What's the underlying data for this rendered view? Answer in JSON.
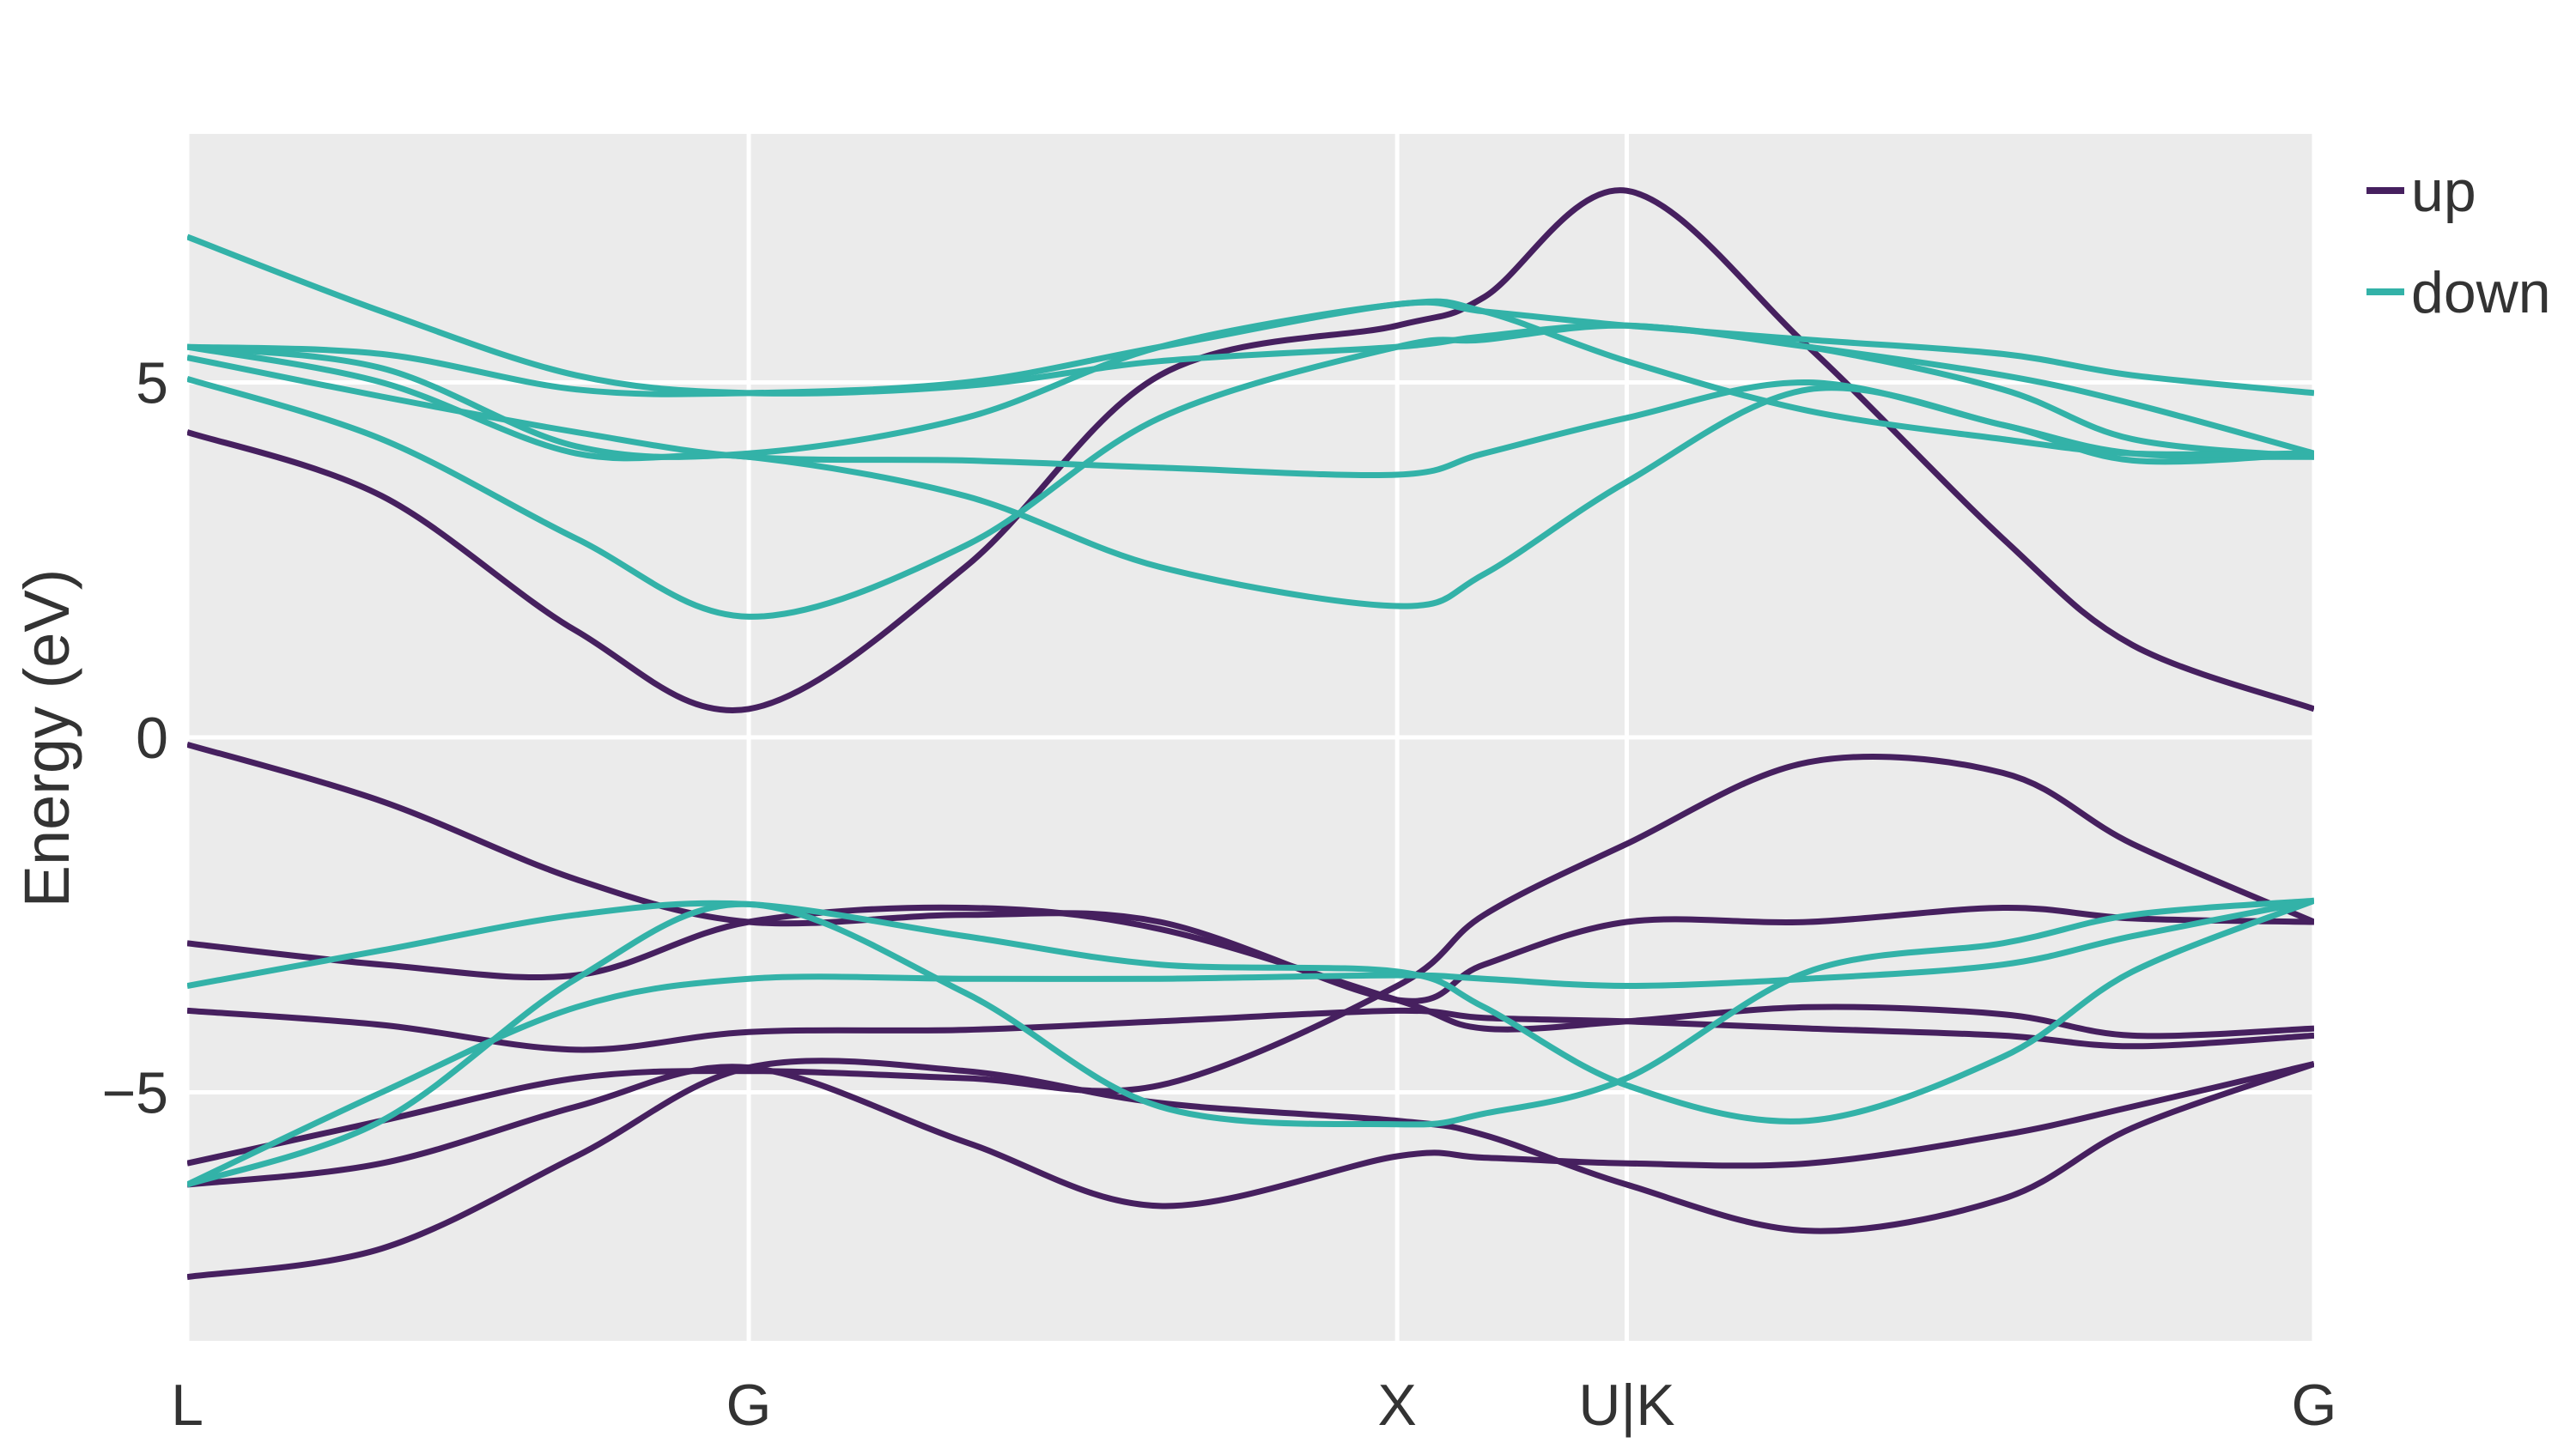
{
  "chart_data": {
    "type": "line",
    "title": "",
    "xlabel": "",
    "ylabel": "Energy (eV)",
    "ylim": [
      -8.5,
      8.5
    ],
    "grid": true,
    "legend_position": "outside-top-right",
    "x_ticks": [
      {
        "label": "L",
        "position": 0
      },
      {
        "label": "G",
        "position": 0.866
      },
      {
        "label": "X",
        "position": 1.866
      },
      {
        "label": "U|K",
        "position": 2.22
      },
      {
        "label": "G",
        "position": 3.28
      }
    ],
    "y_ticks": [
      {
        "label": "−5",
        "value": -5
      },
      {
        "label": "0",
        "value": 0
      },
      {
        "label": "5",
        "value": 5
      }
    ],
    "colors": {
      "up": "#46205f",
      "down": "#33b2a8",
      "panel": "#ebebeb",
      "grid": "#ffffff"
    },
    "series": [
      {
        "name": "up",
        "bands": [
          {
            "x": [
              0,
              0.3,
              0.6,
              0.866,
              1.2,
              1.5,
              1.866,
              2.0,
              2.22,
              2.5,
              2.8,
              3.0,
              3.28
            ],
            "y": [
              -7.6,
              -7.2,
              -5.9,
              -4.65,
              -4.7,
              -5.15,
              -5.4,
              -5.6,
              -6.3,
              -6.95,
              -6.5,
              -5.5,
              -4.6
            ]
          },
          {
            "x": [
              0,
              0.3,
              0.6,
              0.866,
              1.2,
              1.5,
              1.866,
              2.0,
              2.22,
              2.5,
              2.8,
              3.0,
              3.28
            ],
            "y": [
              -6.3,
              -6.0,
              -5.2,
              -4.65,
              -5.7,
              -6.6,
              -5.9,
              -5.92,
              -6.0,
              -6.0,
              -5.6,
              -5.2,
              -4.6
            ]
          },
          {
            "x": [
              0,
              0.3,
              0.6,
              0.866,
              1.2,
              1.5,
              1.866,
              2.0,
              2.22,
              2.5,
              2.8,
              3.0,
              3.28
            ],
            "y": [
              -3.85,
              -4.05,
              -4.4,
              -4.15,
              -4.12,
              -4.0,
              -3.85,
              -3.95,
              -4.0,
              -4.1,
              -4.2,
              -4.35,
              -4.2
            ]
          },
          {
            "x": [
              0,
              0.3,
              0.6,
              0.866,
              1.2,
              1.5,
              1.866,
              2.0,
              2.22,
              2.5,
              2.8,
              3.0,
              3.28
            ],
            "y": [
              -2.9,
              -3.2,
              -3.35,
              -2.6,
              -2.4,
              -2.7,
              -3.7,
              -4.1,
              -4.0,
              -3.8,
              -3.9,
              -4.2,
              -4.1
            ]
          },
          {
            "x": [
              0,
              0.3,
              0.6,
              0.866,
              1.2,
              1.5,
              1.866,
              2.0,
              2.22,
              2.5,
              2.8,
              3.0,
              3.28
            ],
            "y": [
              -0.1,
              -0.9,
              -2.0,
              -2.6,
              -2.5,
              -2.6,
              -3.7,
              -3.2,
              -2.6,
              -2.6,
              -2.4,
              -2.55,
              -2.6
            ]
          },
          {
            "x": [
              0,
              0.3,
              0.6,
              0.866,
              1.2,
              1.5,
              1.866,
              2.0,
              2.22,
              2.5,
              2.8,
              3.0,
              3.28
            ],
            "y": [
              -6.0,
              -5.4,
              -4.8,
              -4.7,
              -4.8,
              -4.9,
              -3.5,
              -2.5,
              -1.5,
              -0.35,
              -0.5,
              -1.5,
              -2.6
            ]
          },
          {
            "x": [
              0,
              0.3,
              0.6,
              0.866,
              1.2,
              1.5,
              1.866,
              2.0,
              2.22,
              2.5,
              2.8,
              3.0,
              3.28
            ],
            "y": [
              4.3,
              3.4,
              1.5,
              0.4,
              2.4,
              5.1,
              5.8,
              6.2,
              7.7,
              5.5,
              2.8,
              1.3,
              0.4
            ]
          }
        ]
      },
      {
        "name": "down",
        "bands": [
          {
            "x": [
              0,
              0.3,
              0.6,
              0.866,
              1.2,
              1.5,
              1.866,
              2.0,
              2.22,
              2.5,
              2.8,
              3.0,
              3.28
            ],
            "y": [
              -6.3,
              -5.4,
              -3.4,
              -2.35,
              -3.6,
              -5.2,
              -5.45,
              -5.3,
              -4.8,
              -3.3,
              -2.9,
              -2.5,
              -2.3
            ]
          },
          {
            "x": [
              0,
              0.3,
              0.6,
              0.866,
              1.2,
              1.5,
              1.866,
              2.0,
              2.22,
              2.5,
              2.8,
              3.0,
              3.28
            ],
            "y": [
              -3.5,
              -3.0,
              -2.5,
              -2.35,
              -2.8,
              -3.2,
              -3.3,
              -3.8,
              -4.9,
              -5.4,
              -4.5,
              -3.3,
              -2.3
            ]
          },
          {
            "x": [
              0,
              0.3,
              0.6,
              0.866,
              1.2,
              1.5,
              1.866,
              2.0,
              2.22,
              2.5,
              2.8,
              3.0,
              3.28
            ],
            "y": [
              -6.3,
              -5.0,
              -3.8,
              -3.4,
              -3.4,
              -3.4,
              -3.35,
              -3.4,
              -3.5,
              -3.4,
              -3.2,
              -2.8,
              -2.3
            ]
          },
          {
            "x": [
              0,
              0.3,
              0.6,
              0.866,
              1.2,
              1.5,
              1.866,
              2.0,
              2.22,
              2.5,
              2.8,
              3.0,
              3.28
            ],
            "y": [
              5.05,
              4.2,
              2.8,
              1.7,
              2.7,
              4.5,
              5.5,
              5.6,
              5.8,
              5.5,
              5.1,
              4.7,
              4.0
            ]
          },
          {
            "x": [
              0,
              0.3,
              0.6,
              0.866,
              1.2,
              1.5,
              1.866,
              2.0,
              2.22,
              2.5,
              2.8,
              3.0,
              3.28
            ],
            "y": [
              5.35,
              4.8,
              4.3,
              3.95,
              3.9,
              3.8,
              3.7,
              4.0,
              4.5,
              5.0,
              4.4,
              4.0,
              3.95
            ]
          },
          {
            "x": [
              0,
              0.3,
              0.6,
              0.866,
              1.2,
              1.5,
              1.866,
              2.0,
              2.22,
              2.5,
              2.8,
              3.0,
              3.28
            ],
            "y": [
              5.5,
              5.0,
              4.0,
              3.95,
              3.4,
              2.4,
              1.85,
              2.3,
              3.6,
              4.9,
              4.4,
              3.9,
              4.0
            ]
          },
          {
            "x": [
              0,
              0.3,
              0.6,
              0.866,
              1.2,
              1.5,
              1.866,
              2.0,
              2.22,
              2.5,
              2.8,
              3.0,
              3.28
            ],
            "y": [
              7.05,
              6.0,
              5.1,
              4.85,
              4.95,
              5.3,
              5.5,
              5.65,
              5.8,
              5.5,
              4.9,
              4.2,
              3.95
            ]
          },
          {
            "x": [
              0,
              0.3,
              0.6,
              0.866,
              1.2,
              1.5,
              1.866,
              2.0,
              2.22,
              2.5,
              2.8,
              3.0,
              3.28
            ],
            "y": [
              5.5,
              5.4,
              4.9,
              4.85,
              5.0,
              5.5,
              6.1,
              6.0,
              5.8,
              5.6,
              5.4,
              5.1,
              4.85
            ]
          },
          {
            "x": [
              0,
              0.3,
              0.6,
              0.866,
              1.2,
              1.5,
              1.866,
              2.0,
              2.22,
              2.5,
              2.8,
              3.0,
              3.28
            ],
            "y": [
              5.5,
              5.2,
              4.1,
              4.0,
              4.5,
              5.5,
              6.1,
              6.0,
              5.3,
              4.6,
              4.2,
              4.0,
              4.0
            ]
          }
        ]
      }
    ]
  }
}
